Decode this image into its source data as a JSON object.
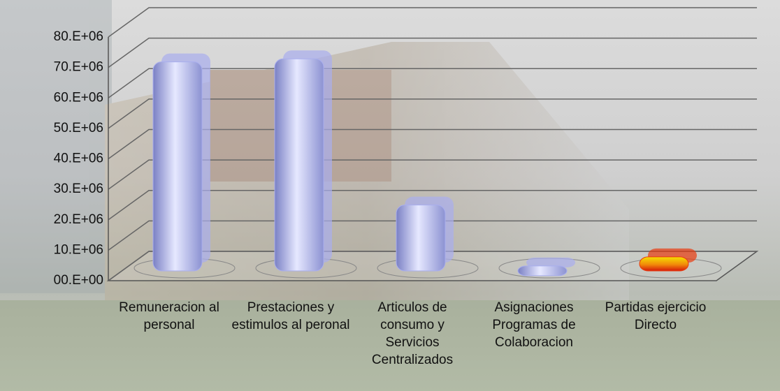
{
  "chart_data": {
    "type": "bar3d",
    "categories": [
      "Remuneracion al personal",
      "Prestaciones y estimulos al peronal",
      "Articulos de consumo y Servicios Centralizados",
      "Asignaciones Programas de Colaboracion",
      "Partidas ejercicio Directo"
    ],
    "values": [
      70000000,
      71000000,
      23000000,
      3000000,
      6000000
    ],
    "colors": [
      "#a9aeee",
      "#a9aeee",
      "#a9aeee",
      "#a9aeee",
      "#e83a10"
    ],
    "ylim": [
      0,
      80000000
    ],
    "yticks": [
      {
        "value": 0,
        "label": "00.E+00"
      },
      {
        "value": 10000000,
        "label": "10.E+06"
      },
      {
        "value": 20000000,
        "label": "20.E+06"
      },
      {
        "value": 30000000,
        "label": "30.E+06"
      },
      {
        "value": 40000000,
        "label": "40.E+06"
      },
      {
        "value": 50000000,
        "label": "50.E+06"
      },
      {
        "value": 60000000,
        "label": "60.E+06"
      },
      {
        "value": 70000000,
        "label": "70.E+06"
      },
      {
        "value": 80000000,
        "label": "80.E+06"
      }
    ],
    "grid": true
  }
}
